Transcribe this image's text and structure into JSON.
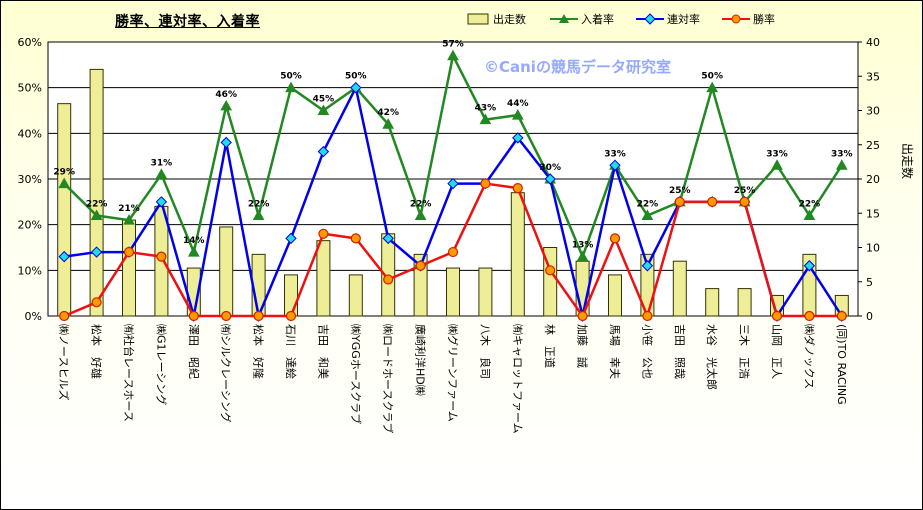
{
  "title": "勝率、連対率、入着率",
  "watermark": "©Caniの競馬データ研究室",
  "legend": {
    "starts": "出走数",
    "place": "入着率",
    "quinella": "連対率",
    "win": "勝率"
  },
  "colors": {
    "bars": "#eeee99",
    "bar_stroke": "#333300",
    "place": "#228822",
    "quinella": "#0000ee",
    "quinella_marker": "#22dddd",
    "win": "#ee1111",
    "win_marker": "#ff9900",
    "plot_bg": "#ffffff",
    "grid": "#000000"
  },
  "chart_data": {
    "type": "bar+line",
    "title": "勝率、連対率、入着率",
    "categories": [
      "㈱ノースヒルズ",
      "松本　好雄",
      "㈲社台レースホース",
      "㈱G1レーシング",
      "澤田　昭紀",
      "㈲シルクレーシング",
      "松本　好隆",
      "石川　達絵",
      "吉田　和美",
      "㈱YGGホースクラブ",
      "㈱ロードホースクラブ",
      "廣崎利洋HD㈱",
      "㈱グリーンファーム",
      "八木　良司",
      "㈲キャロットファーム",
      "林　正道",
      "加藤　誠",
      "馬場　幸夫",
      "小笹　公也",
      "吉田　照哉",
      "水谷　光太郎",
      "三木　正浩",
      "山岡　正人",
      "㈱ダノックス",
      "(同)TO RACING"
    ],
    "y_left": {
      "ylim": [
        0,
        60
      ],
      "ticks": [
        "0%",
        "10%",
        "20%",
        "30%",
        "40%",
        "50%",
        "60%"
      ]
    },
    "y_right": {
      "label": "出走数",
      "ylim": [
        0,
        40
      ],
      "ticks": [
        "0",
        "5",
        "10",
        "15",
        "20",
        "25",
        "30",
        "35",
        "40"
      ]
    },
    "grid": true,
    "legend_position": "top-right",
    "series": [
      {
        "name": "出走数",
        "kind": "bar",
        "axis": "right",
        "values": [
          31,
          36,
          14,
          16,
          7,
          13,
          9,
          6,
          11,
          6,
          12,
          9,
          7,
          7,
          18,
          10,
          8,
          6,
          9,
          8,
          4,
          4,
          3,
          9,
          3
        ]
      },
      {
        "name": "入着率",
        "kind": "line",
        "axis": "left",
        "values": [
          29,
          22,
          21,
          31,
          14,
          46,
          22,
          50,
          45,
          50,
          42,
          22,
          57,
          43,
          44,
          30,
          13,
          33,
          22,
          25,
          50,
          25,
          33,
          22,
          33
        ],
        "data_labels": [
          "29%",
          "22%",
          "21%",
          "31%",
          "14%",
          "46%",
          "22%",
          "50%",
          "45%",
          "50%",
          "42%",
          "22%",
          "57%",
          "43%",
          "44%",
          "30%",
          "13%",
          "33%",
          "22%",
          "25%",
          "50%",
          "25%",
          "33%",
          "22%",
          "33%"
        ]
      },
      {
        "name": "連対率",
        "kind": "line",
        "axis": "left",
        "values": [
          13,
          14,
          14,
          25,
          0,
          38,
          0,
          17,
          36,
          50,
          17,
          11,
          29,
          29,
          39,
          30,
          0,
          33,
          11,
          25,
          25,
          25,
          0,
          11,
          0
        ]
      },
      {
        "name": "勝率",
        "kind": "line",
        "axis": "left",
        "values": [
          0,
          3,
          14,
          13,
          0,
          0,
          0,
          0,
          18,
          17,
          8,
          11,
          14,
          29,
          28,
          10,
          0,
          17,
          0,
          25,
          25,
          25,
          0,
          0,
          0
        ]
      }
    ]
  }
}
